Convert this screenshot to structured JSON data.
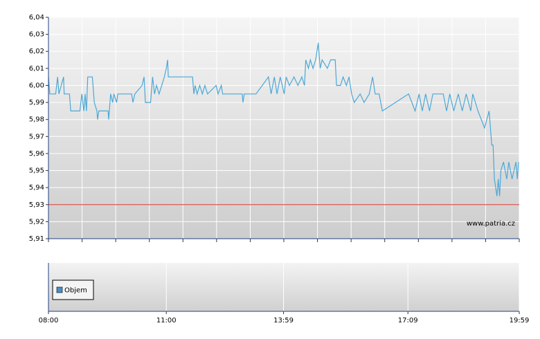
{
  "chart_data": [
    {
      "type": "line",
      "color": "#4aa8d8",
      "xlim": [
        "08:00",
        "19:59"
      ],
      "ylim": [
        5.91,
        6.04
      ],
      "yticks": [
        {
          "value": 5.91,
          "label": "5,91"
        },
        {
          "value": 5.92,
          "label": "5,92"
        },
        {
          "value": 5.93,
          "label": "5,93"
        },
        {
          "value": 5.94,
          "label": "5,94"
        },
        {
          "value": 5.95,
          "label": "5,95"
        },
        {
          "value": 5.96,
          "label": "5,96"
        },
        {
          "value": 5.97,
          "label": "5,97"
        },
        {
          "value": 5.98,
          "label": "5,98"
        },
        {
          "value": 5.99,
          "label": "5,99"
        },
        {
          "value": 6.0,
          "label": "6,00"
        },
        {
          "value": 6.01,
          "label": "6,01"
        },
        {
          "value": 6.02,
          "label": "6,02"
        },
        {
          "value": 6.03,
          "label": "6,03"
        },
        {
          "value": 6.04,
          "label": "6,04"
        }
      ],
      "grid": true,
      "reference_line": {
        "value": 5.93,
        "color": "#d9534f"
      },
      "watermark": "www.patria.cz",
      "x": [
        "08:00",
        "08:02",
        "08:11",
        "08:14",
        "08:16",
        "08:23",
        "08:24",
        "08:32",
        "08:34",
        "08:48",
        "08:51",
        "08:54",
        "08:56",
        "08:58",
        "09:00",
        "09:07",
        "09:10",
        "09:14",
        "09:15",
        "09:17",
        "09:31",
        "09:32",
        "09:35",
        "09:38",
        "09:40",
        "09:44",
        "09:46",
        "10:07",
        "10:09",
        "10:12",
        "10:23",
        "10:26",
        "10:28",
        "10:36",
        "10:39",
        "10:42",
        "10:45",
        "10:49",
        "10:53",
        "10:57",
        "11:00",
        "11:02",
        "11:03",
        "11:40",
        "11:42",
        "11:44",
        "11:47",
        "11:51",
        "11:55",
        "11:59",
        "12:03",
        "12:16",
        "12:19",
        "12:24",
        "12:26",
        "12:56",
        "12:57",
        "12:59",
        "13:17",
        "13:36",
        "13:40",
        "13:45",
        "13:49",
        "13:54",
        "14:00",
        "14:03",
        "14:08",
        "14:15",
        "14:21",
        "14:27",
        "14:31",
        "14:33",
        "14:37",
        "14:40",
        "14:44",
        "14:48",
        "14:52",
        "14:55",
        "14:58",
        "15:06",
        "15:11",
        "15:18",
        "15:20",
        "15:26",
        "15:30",
        "15:35",
        "15:39",
        "15:43",
        "15:47",
        "15:56",
        "16:02",
        "16:10",
        "16:15",
        "16:19",
        "16:25",
        "16:30",
        "17:10",
        "17:20",
        "17:26",
        "17:31",
        "17:36",
        "17:42",
        "17:47",
        "18:03",
        "18:08",
        "18:13",
        "18:19",
        "18:26",
        "18:32",
        "18:38",
        "18:45",
        "18:48",
        "18:56",
        "19:06",
        "19:13",
        "19:17",
        "19:19",
        "19:21",
        "19:23",
        "19:25",
        "19:27",
        "19:29",
        "19:31",
        "19:35",
        "19:40",
        "19:43",
        "19:48",
        "19:54",
        "19:56",
        "19:58"
      ],
      "values": [
        6.005,
        5.995,
        5.995,
        6.005,
        5.995,
        6.005,
        5.995,
        5.995,
        5.985,
        5.985,
        5.995,
        5.985,
        5.995,
        5.985,
        6.005,
        6.005,
        5.99,
        5.985,
        5.98,
        5.985,
        5.985,
        5.98,
        5.995,
        5.99,
        5.995,
        5.99,
        5.995,
        5.995,
        5.99,
        5.995,
        6.0,
        6.005,
        5.99,
        5.99,
        6.005,
        5.995,
        6.0,
        5.995,
        6.0,
        6.005,
        6.01,
        6.015,
        6.005,
        6.005,
        5.995,
        6.0,
        5.995,
        6.0,
        5.995,
        6.0,
        5.995,
        6.0,
        5.995,
        6.0,
        5.995,
        5.995,
        5.99,
        5.995,
        5.995,
        6.005,
        5.995,
        6.005,
        5.995,
        6.005,
        5.995,
        6.005,
        6.0,
        6.005,
        6.0,
        6.005,
        6.0,
        6.015,
        6.01,
        6.015,
        6.01,
        6.015,
        6.025,
        6.01,
        6.015,
        6.01,
        6.015,
        6.015,
        6.0,
        6.0,
        6.005,
        6.0,
        6.005,
        5.995,
        5.99,
        5.995,
        5.99,
        5.995,
        6.005,
        5.995,
        5.995,
        5.985,
        5.995,
        5.985,
        5.995,
        5.985,
        5.995,
        5.985,
        5.995,
        5.995,
        5.985,
        5.995,
        5.985,
        5.995,
        5.985,
        5.995,
        5.985,
        5.995,
        5.985,
        5.975,
        5.985,
        5.965,
        5.965,
        5.945,
        5.94,
        5.935,
        5.945,
        5.935,
        5.95,
        5.955,
        5.945,
        5.955,
        5.945,
        5.955,
        5.945,
        5.955
      ]
    },
    {
      "type": "bar",
      "xlim": [
        "08:00",
        "19:59"
      ],
      "xticks": [
        "08:00",
        "11:00",
        "13:59",
        "17:09",
        "19:59"
      ],
      "grid": true,
      "series": [
        {
          "name": "Objem",
          "color": "#4a90c8",
          "values": []
        }
      ]
    }
  ]
}
